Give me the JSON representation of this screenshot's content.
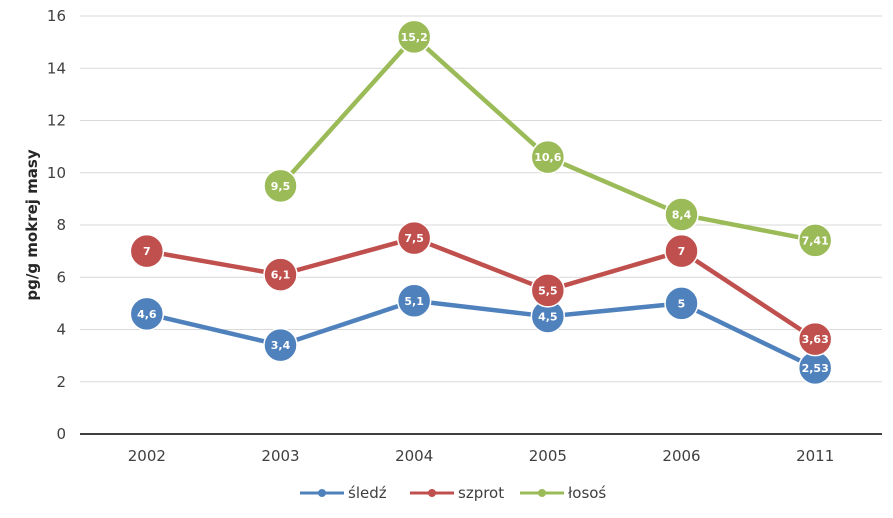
{
  "chart_data": {
    "type": "line",
    "title": "",
    "xlabel": "",
    "ylabel": "pg/g mokrej masy",
    "categories": [
      "2002",
      "2003",
      "2004",
      "2005",
      "2006",
      "2011"
    ],
    "ylim": [
      0,
      16
    ],
    "yticks": [
      0,
      2,
      4,
      6,
      8,
      10,
      12,
      14,
      16
    ],
    "grid": "horizontal",
    "legend_position": "bottom",
    "series": [
      {
        "name": "śledź",
        "color": "#4f81bd",
        "values": [
          4.6,
          3.4,
          5.1,
          4.5,
          5,
          2.53
        ],
        "labels": [
          "4,6",
          "3,4",
          "5,1",
          "4,5",
          "5",
          "2,53"
        ]
      },
      {
        "name": "szprot",
        "color": "#c0504d",
        "values": [
          7,
          6.1,
          7.5,
          5.5,
          7,
          3.63
        ],
        "labels": [
          "7",
          "6,1",
          "7,5",
          "5,5",
          "7",
          "3,63"
        ]
      },
      {
        "name": "łosoś",
        "color": "#9bbb59",
        "values": [
          null,
          9.5,
          15.2,
          10.6,
          8.4,
          7.41
        ],
        "labels": [
          "",
          "9,5",
          "15,2",
          "10,6",
          "8,4",
          "7,41"
        ]
      }
    ]
  }
}
